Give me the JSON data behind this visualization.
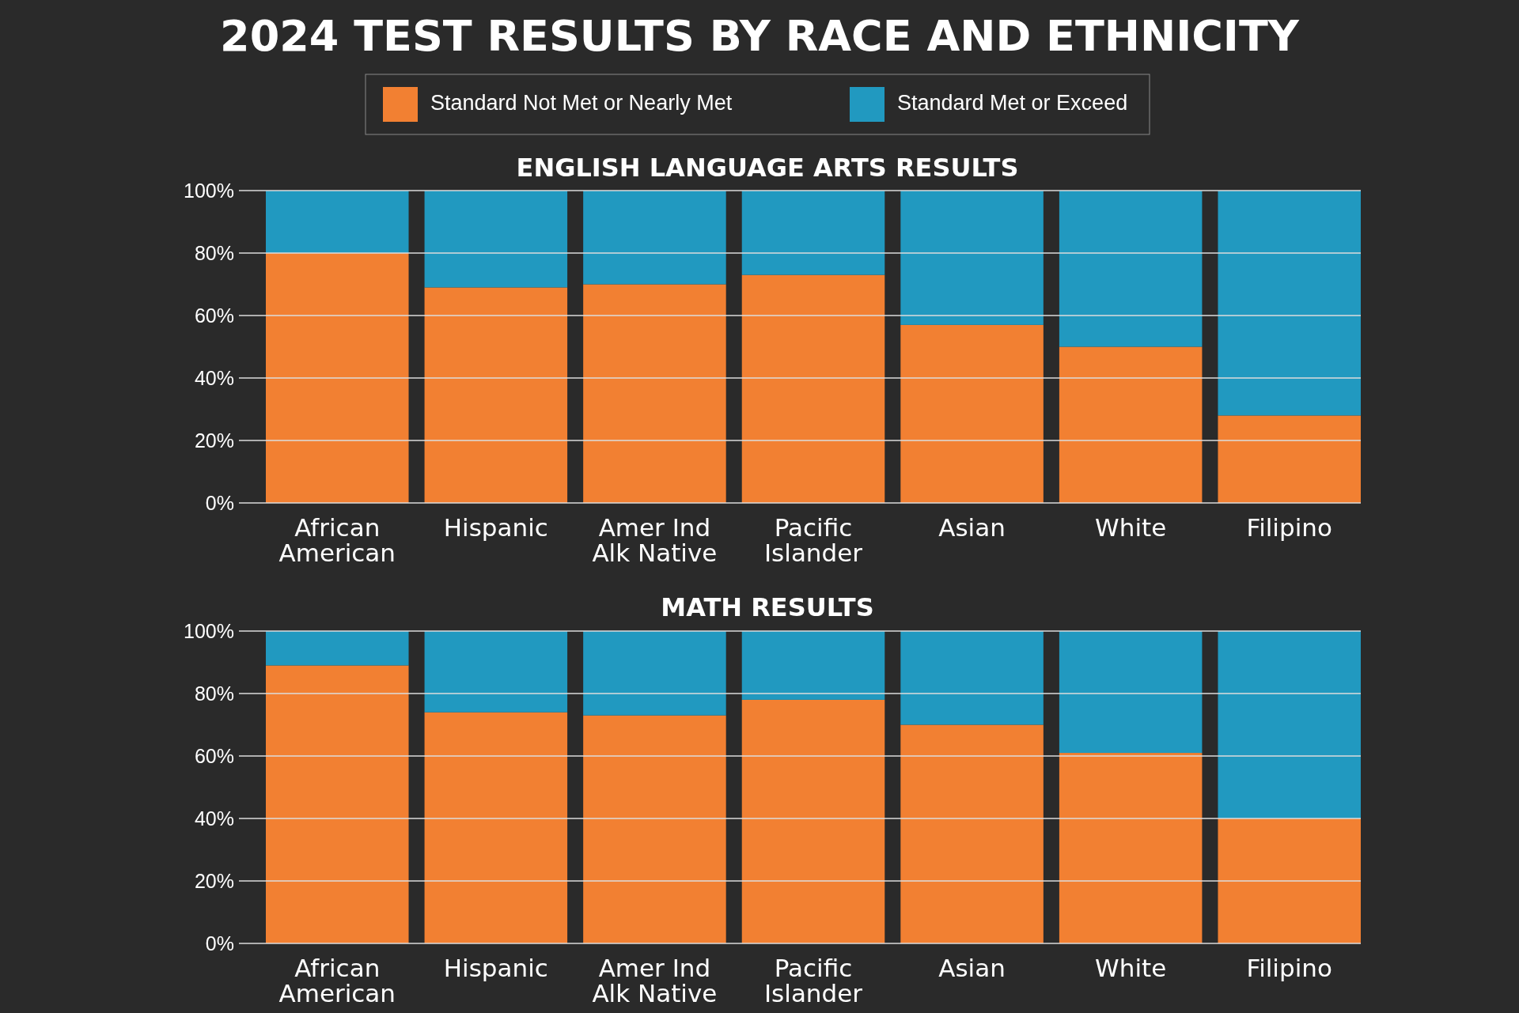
{
  "chart_data": [
    {
      "type": "bar",
      "title": "2024 TEST RESULTS BY RACE AND ETHNICITY",
      "subtitle": "ENGLISH LANGUAGE ARTS RESULTS",
      "stacked": true,
      "legend": "top",
      "grid": "y",
      "categories": [
        "African\nAmerican",
        "Hispanic",
        "Amer Ind\nAlk Native",
        "Pacific\nIslander",
        "Asian",
        "White",
        "Filipino"
      ],
      "ylim": [
        0,
        100
      ],
      "yticks": [
        {
          "value": 0,
          "label": "0%"
        },
        {
          "value": 20,
          "label": "20%"
        },
        {
          "value": 40,
          "label": "40%"
        },
        {
          "value": 60,
          "label": "60%"
        },
        {
          "value": 80,
          "label": "80%"
        },
        {
          "value": 100,
          "label": "100%"
        }
      ],
      "series": [
        {
          "name": "Standard Not Met or Nearly Met",
          "color": "#f28032",
          "values": [
            80,
            69,
            70,
            73,
            57,
            50,
            28
          ]
        },
        {
          "name": "Standard Met or Exceed",
          "color": "#2199c0",
          "values": [
            20,
            31,
            30,
            27,
            43,
            50,
            72
          ]
        }
      ]
    },
    {
      "type": "bar",
      "title": "MATH RESULTS",
      "stacked": true,
      "grid": "y",
      "categories": [
        "African\nAmerican",
        "Hispanic",
        "Amer Ind\nAlk Native",
        "Pacific\nIslander",
        "Asian",
        "White",
        "Filipino"
      ],
      "ylim": [
        0,
        100
      ],
      "yticks": [
        {
          "value": 0,
          "label": "0%"
        },
        {
          "value": 20,
          "label": "20%"
        },
        {
          "value": 40,
          "label": "40%"
        },
        {
          "value": 60,
          "label": "60%"
        },
        {
          "value": 80,
          "label": "80%"
        },
        {
          "value": 100,
          "label": "100%"
        }
      ],
      "series": [
        {
          "color": "#f28032",
          "values": [
            89,
            74,
            73,
            78,
            70,
            61,
            40
          ]
        },
        {
          "color": "#2199c0",
          "values": [
            11,
            26,
            27,
            22,
            30,
            39,
            60
          ]
        }
      ]
    }
  ]
}
